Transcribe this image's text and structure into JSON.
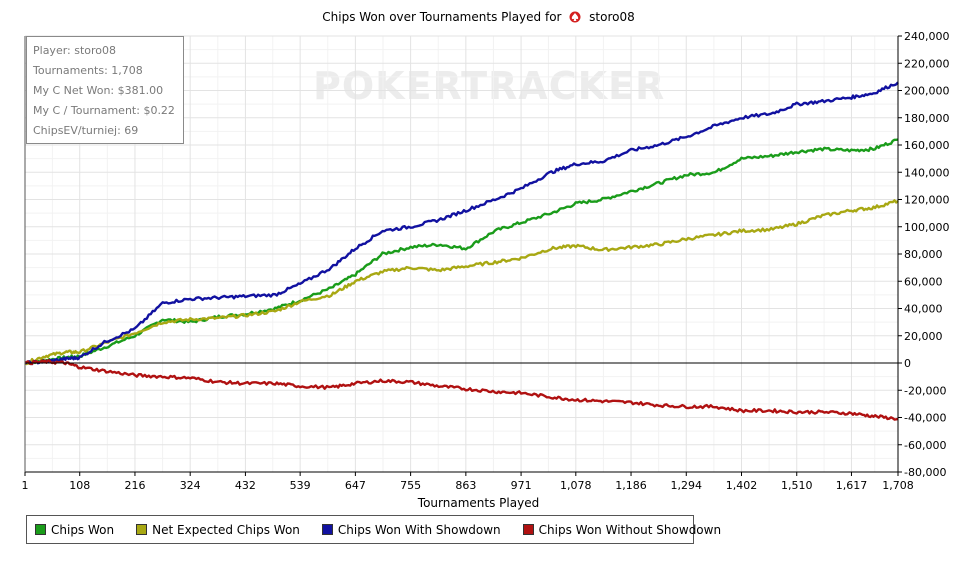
{
  "title": {
    "text": "Chips Won over Tournaments Played for",
    "player": "storo08"
  },
  "watermark": "POKERTRACKER",
  "infobox": {
    "lines": [
      "Player: storo08",
      "Tournaments: 1,708",
      "My C Net Won: $381.00",
      "My C / Tournament: $0.22",
      "ChipsEV/turniej: 69"
    ]
  },
  "chart_data": {
    "type": "line",
    "title": "Chips Won over Tournaments Played for storo08",
    "xlabel": "Tournaments Played",
    "ylabel": "",
    "xlim": [
      1,
      1708
    ],
    "ylim": [
      -80000,
      240000
    ],
    "x_ticks": [
      "1",
      "108",
      "216",
      "324",
      "432",
      "539",
      "647",
      "755",
      "863",
      "971",
      "1,078",
      "1,186",
      "1,294",
      "1,402",
      "1,510",
      "1,617",
      "1,708"
    ],
    "x_tick_values": [
      1,
      108,
      216,
      324,
      432,
      539,
      647,
      755,
      863,
      971,
      1078,
      1186,
      1294,
      1402,
      1510,
      1617,
      1708
    ],
    "y_ticks": [
      "240,000",
      "220,000",
      "200,000",
      "180,000",
      "160,000",
      "140,000",
      "120,000",
      "100,000",
      "80,000",
      "60,000",
      "40,000",
      "20,000",
      "0",
      "-20,000",
      "-40,000",
      "-60,000",
      "-80,000"
    ],
    "y_tick_values": [
      240000,
      220000,
      200000,
      180000,
      160000,
      140000,
      120000,
      100000,
      80000,
      60000,
      40000,
      20000,
      0,
      -20000,
      -40000,
      -60000,
      -80000
    ],
    "grid": true,
    "legend_position": "bottom",
    "x": [
      1,
      40,
      80,
      108,
      160,
      216,
      270,
      324,
      380,
      432,
      490,
      539,
      600,
      647,
      700,
      755,
      810,
      863,
      920,
      971,
      1030,
      1078,
      1130,
      1186,
      1240,
      1294,
      1350,
      1402,
      1460,
      1510,
      1560,
      1617,
      1660,
      1708
    ],
    "series": [
      {
        "name": "Chips Won",
        "color": "#1a9c1a",
        "values": [
          0,
          2000,
          4000,
          5000,
          12000,
          20000,
          32000,
          30000,
          34000,
          36000,
          40000,
          46000,
          55000,
          65000,
          80000,
          85000,
          87000,
          84000,
          97000,
          103000,
          110000,
          117000,
          120000,
          126000,
          132000,
          138000,
          140000,
          150000,
          152000,
          155000,
          157000,
          156000,
          157000,
          164000
        ]
      },
      {
        "name": "Net Expected Chips Won",
        "color": "#a8a813",
        "values": [
          0,
          5000,
          8000,
          8000,
          15000,
          22000,
          30000,
          32000,
          33000,
          35000,
          38000,
          45000,
          50000,
          60000,
          67000,
          70000,
          68000,
          71000,
          74000,
          77000,
          84000,
          86000,
          83000,
          85000,
          87000,
          91000,
          94000,
          97000,
          98000,
          102000,
          108000,
          112000,
          114000,
          119000
        ]
      },
      {
        "name": "Chips Won With Showdown",
        "color": "#1111a0",
        "values": [
          0,
          1000,
          3000,
          4000,
          16000,
          25000,
          44000,
          47000,
          48000,
          49000,
          50000,
          58000,
          70000,
          84000,
          97000,
          100000,
          105000,
          112000,
          120000,
          128000,
          140000,
          146000,
          148000,
          156000,
          160000,
          166000,
          174000,
          180000,
          183000,
          190000,
          192000,
          195000,
          198000,
          206000
        ]
      },
      {
        "name": "Chips Won Without Showdown",
        "color": "#b01111",
        "values": [
          0,
          1000,
          0,
          -3000,
          -6000,
          -9000,
          -10000,
          -11000,
          -14000,
          -15000,
          -15000,
          -17000,
          -18000,
          -15000,
          -13000,
          -14000,
          -17000,
          -19000,
          -21000,
          -22000,
          -25000,
          -27000,
          -28000,
          -29000,
          -31000,
          -32000,
          -32000,
          -35000,
          -35000,
          -36000,
          -36000,
          -37000,
          -39000,
          -41000
        ]
      }
    ]
  }
}
